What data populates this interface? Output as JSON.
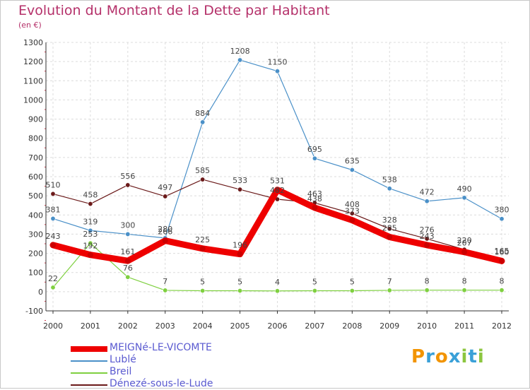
{
  "title": "Evolution du Montant de la Dette par Habitant",
  "subtitle": "(en €)",
  "brand": {
    "letters": [
      "P",
      "r",
      "o",
      "x",
      "i",
      "t",
      "i"
    ],
    "colors": [
      "#f29400",
      "#3aa0d8",
      "#f29400",
      "#3aa0d8",
      "#8cc63f",
      "#3aa0d8",
      "#8cc63f"
    ]
  },
  "chart_data": {
    "type": "line",
    "title": "Evolution du Montant de la Dette par Habitant",
    "subtitle": "(en €)",
    "x": [
      "2000",
      "2001",
      "2002",
      "2003",
      "2004",
      "2005",
      "2006",
      "2007",
      "2008",
      "2009",
      "2010",
      "2011",
      "2012"
    ],
    "ylim": [
      -100,
      1300
    ],
    "yticks": [
      -100,
      0,
      100,
      200,
      300,
      400,
      500,
      600,
      700,
      800,
      900,
      1000,
      1100,
      1200,
      1300
    ],
    "grid": true,
    "legend_position": "bottom-left",
    "series": [
      {
        "name": "MEIGNé-LE-VICOMTE",
        "color": "#ee0000",
        "thick": true,
        "values": [
          243,
          192,
          161,
          266,
          225,
          196,
          531,
          438,
          373,
          285,
          243,
          207,
          160
        ],
        "labels": [
          "243",
          "192",
          "161",
          "266",
          "225",
          "196",
          "531",
          "438",
          "373",
          "285",
          "243",
          "207",
          "160"
        ]
      },
      {
        "name": "Lublé",
        "color": "#4a90c8",
        "thick": false,
        "values": [
          381,
          319,
          300,
          280,
          884,
          1208,
          1150,
          695,
          635,
          538,
          472,
          490,
          380
        ],
        "labels": [
          "381",
          "319",
          "300",
          "280",
          "884",
          "1208",
          "1150",
          "695",
          "635",
          "538",
          "472",
          "490",
          "380"
        ]
      },
      {
        "name": "Breil",
        "color": "#7fd040",
        "thick": false,
        "values": [
          22,
          253,
          76,
          7,
          5,
          5,
          4,
          5,
          5,
          7,
          8,
          8,
          8
        ],
        "labels": [
          "22",
          "253",
          "76",
          "7",
          "5",
          "5",
          "4",
          "5",
          "5",
          "7",
          "8",
          "8",
          "8"
        ]
      },
      {
        "name": "Dénezé-sous-le-Lude",
        "color": "#6b1a1a",
        "thick": false,
        "values": [
          510,
          458,
          556,
          497,
          585,
          533,
          482,
          463,
          408,
          328,
          276,
          220,
          165
        ],
        "labels": [
          "510",
          "458",
          "556",
          "497",
          "585",
          "533",
          "482",
          "463",
          "408",
          "328",
          "276",
          "220",
          "165"
        ]
      }
    ]
  }
}
